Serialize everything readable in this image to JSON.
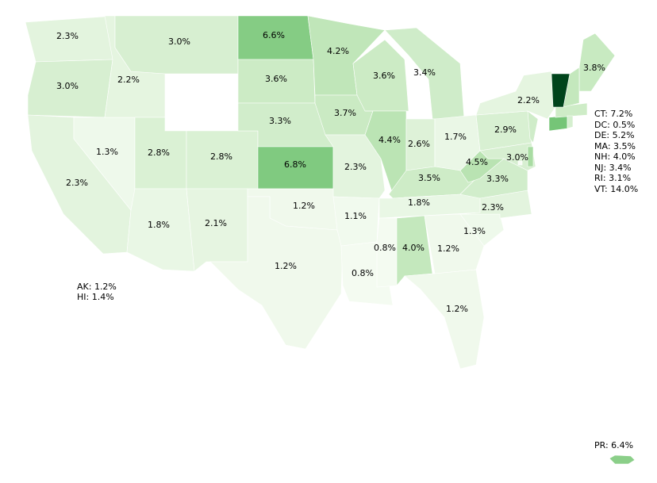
{
  "chart_data": {
    "type": "choropleth",
    "colormap": "Greens",
    "values": [
      2.3,
      3.0,
      2.3,
      1.3,
      2.2,
      3.0,
      2.8,
      2.8,
      1.8,
      2.1,
      6.6,
      3.6,
      3.3,
      6.8,
      1.2,
      1.2,
      4.2,
      3.7,
      2.3,
      1.1,
      0.8,
      3.6,
      3.4,
      4.4,
      2.6,
      1.7,
      3.5,
      1.8,
      0.8,
      4.0,
      1.2,
      1.2,
      1.3,
      2.3,
      3.3,
      4.5,
      2.9,
      3.0,
      2.2,
      3.8,
      7.2,
      0.5,
      5.2,
      3.5,
      4.0,
      3.4,
      3.1,
      14.0,
      1.2,
      1.4,
      6.4
    ],
    "value_labels": [
      "2.3%",
      "3.0%",
      "2.3%",
      "1.3%",
      "2.2%",
      "3.0%",
      "2.8%",
      "2.8%",
      "1.8%",
      "2.1%",
      "6.6%",
      "3.6%",
      "3.3%",
      "6.8%",
      "1.2%",
      "1.2%",
      "4.2%",
      "3.7%",
      "2.3%",
      "1.1%",
      "0.8%",
      "3.6%",
      "3.4%",
      "4.4%",
      "2.6%",
      "1.7%",
      "3.5%",
      "1.8%",
      "0.8%",
      "4.0%",
      "1.2%",
      "1.2%",
      "1.3%",
      "2.3%",
      "3.3%",
      "4.5%",
      "2.9%",
      "3.0%",
      "2.2%",
      "3.8%",
      "CT: 7.2%",
      "DC: 0.5%",
      "DE: 5.2%",
      "MA: 3.5%",
      "NH: 4.0%",
      "NJ: 3.4%",
      "RI: 3.1%",
      "VT: 14.0%",
      "AK: 1.2%",
      "HI: 1.4%",
      "PR: 6.4%"
    ]
  }
}
